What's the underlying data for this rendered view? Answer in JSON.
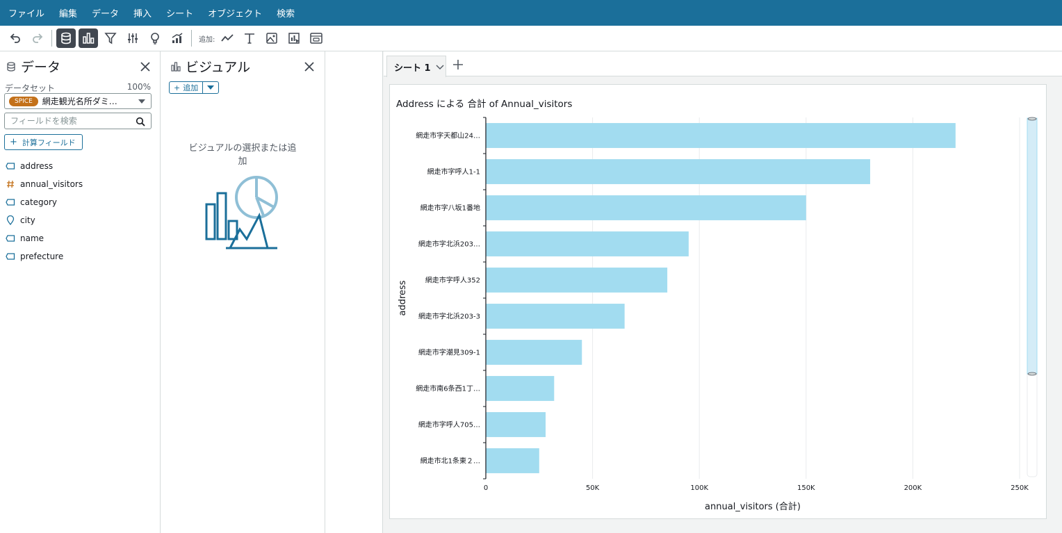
{
  "menubar": {
    "items": [
      "ファイル",
      "編集",
      "データ",
      "挿入",
      "シート",
      "オブジェクト",
      "検索"
    ]
  },
  "toolbar": {
    "add_label": "追加:",
    "icons": [
      "undo-icon",
      "redo-icon",
      "database-icon",
      "bar-chart-icon",
      "filter-icon",
      "sliders-icon",
      "lightbulb-icon",
      "forecast-icon",
      "line-chart-icon",
      "text-icon",
      "image-icon",
      "chart-cursor-icon",
      "embed-icon"
    ]
  },
  "data_panel": {
    "title": "データ",
    "dataset_label": "データセット",
    "dataset_percent": "100%",
    "spice_badge": "SPICE",
    "dataset_name": "網走観光名所ダミ…",
    "search_placeholder": "フィールドを検索",
    "calc_field_label": "計算フィールド",
    "fields": [
      {
        "name": "address",
        "type": "dimension"
      },
      {
        "name": "annual_visitors",
        "type": "measure"
      },
      {
        "name": "category",
        "type": "dimension"
      },
      {
        "name": "city",
        "type": "geo"
      },
      {
        "name": "name",
        "type": "dimension"
      },
      {
        "name": "prefecture",
        "type": "dimension"
      }
    ]
  },
  "visual_panel": {
    "title": "ビジュアル",
    "add_label": "追加",
    "empty_message": "ビジュアルの選択または追加"
  },
  "sheets": {
    "tab_label": "シート 1"
  },
  "colors": {
    "menubar": "#1b6f9a",
    "bar": "#a2dcf0",
    "spice_badge": "#c3711a",
    "accent": "#1b6f9a"
  },
  "chart_data": {
    "type": "bar",
    "orientation": "horizontal",
    "title": "Address による 合計 of Annual_visitors",
    "xlabel": "annual_visitors (合計)",
    "ylabel": "address",
    "categories": [
      "網走市字天都山24…",
      "網走市字呼人1-1",
      "網走市字八坂1番地",
      "網走市字北浜203…",
      "網走市字呼人352",
      "網走市字北浜203-3",
      "網走市字潮見309-1",
      "網走市南6条西1丁…",
      "網走市字呼人705…",
      "網走市北1条東２…"
    ],
    "values": [
      220000,
      180000,
      150000,
      95000,
      85000,
      65000,
      45000,
      32000,
      28000,
      25000
    ],
    "xlim": [
      0,
      250000
    ],
    "x_ticks": [
      "0",
      "50K",
      "100K",
      "150K",
      "200K",
      "250K"
    ],
    "x_tick_values": [
      0,
      50000,
      100000,
      150000,
      200000,
      250000
    ],
    "grid": true
  }
}
